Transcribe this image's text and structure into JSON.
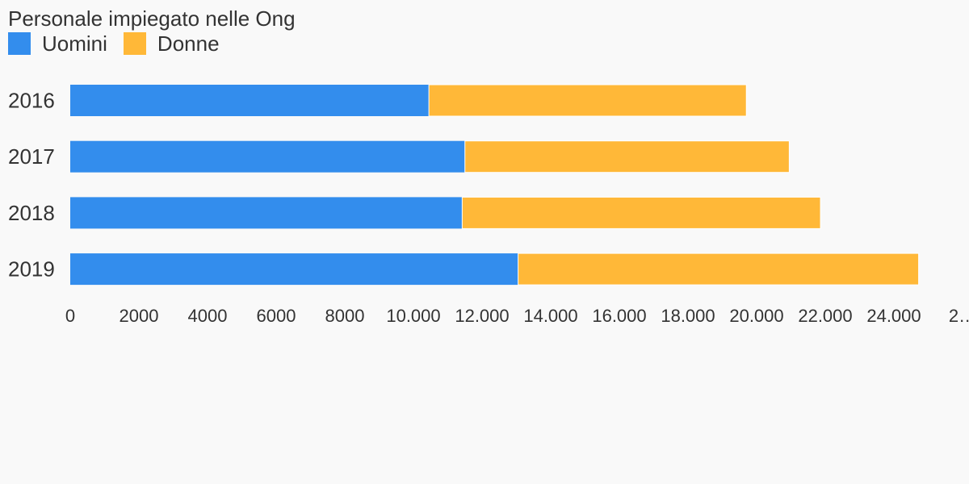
{
  "chart_data": {
    "type": "bar",
    "orientation": "horizontal",
    "stacked": true,
    "title": "Personale impiegato nelle Ong",
    "categories": [
      "2016",
      "2017",
      "2018",
      "2019"
    ],
    "series": [
      {
        "name": "Uomini",
        "color": "#338ded",
        "values": [
          10450,
          11500,
          11420,
          13050
        ]
      },
      {
        "name": "Donne",
        "color": "#ffb838",
        "values": [
          9250,
          9450,
          10440,
          11670
        ]
      }
    ],
    "x_ticks": [
      "0",
      "2000",
      "4000",
      "6000",
      "8000",
      "10.000",
      "12.000",
      "14.000",
      "16.000",
      "18.000",
      "20.000",
      "22.000",
      "24.000",
      "2…"
    ],
    "xlim": [
      0,
      26000
    ],
    "legend_position": "top-left",
    "grid": false
  }
}
